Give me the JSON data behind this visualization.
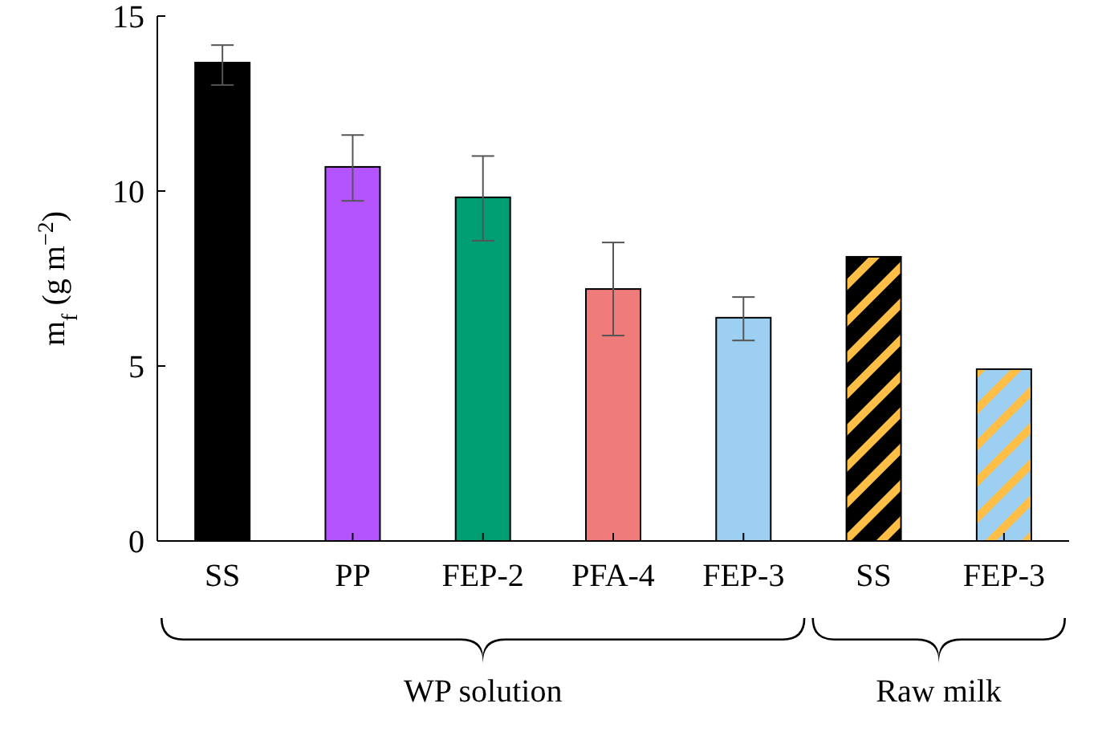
{
  "chart_data": {
    "type": "bar",
    "ylabel": "m$_{f}$ (g m$^{−2}$)",
    "categories": [
      "SS",
      "PP",
      "FEP-2",
      "PFA-4",
      "FEP-3",
      "SS",
      "FEP-3"
    ],
    "series": [
      {
        "colors": [
          "#000000",
          "#b354ff",
          "#009e73",
          "#f07b7b",
          "#9ccff2",
          null,
          null
        ],
        "values": [
          13.67,
          10.69,
          9.82,
          7.2,
          6.38,
          null,
          null
        ],
        "errors": [
          [
            13.03,
            14.17
          ],
          [
            9.72,
            11.6
          ],
          [
            8.58,
            11.0
          ],
          [
            5.87,
            8.53
          ],
          [
            5.73,
            6.97
          ],
          null,
          null
        ]
      },
      {
        "colors": [
          null,
          null,
          null,
          null,
          null,
          "#000000",
          "#9ccff2"
        ],
        "values": [
          null,
          null,
          null,
          null,
          null,
          8.12,
          4.91
        ]
      }
    ],
    "annotations": [
      "WP solution",
      "Raw milk"
    ],
    "ylim": [
      0,
      15
    ],
    "yticks": [
      0,
      5,
      10,
      15
    ],
    "grid": false
  }
}
